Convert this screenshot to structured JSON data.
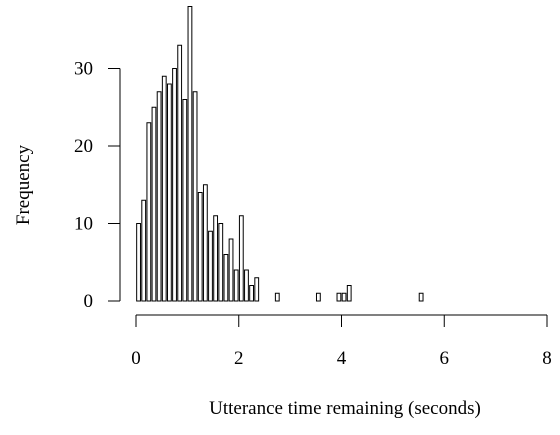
{
  "chart_data": {
    "type": "bar",
    "subtype": "histogram",
    "title": "",
    "xlabel": "Utterance time remaining (seconds)",
    "ylabel": "Frequency",
    "xlim": [
      0,
      8
    ],
    "ylim": [
      0,
      38
    ],
    "x_ticks": [
      0,
      2,
      4,
      6,
      8
    ],
    "y_ticks": [
      0,
      10,
      20,
      30
    ],
    "grid": false,
    "legend": "none",
    "bin_width": 0.1,
    "bins_start": [
      0,
      0.1,
      0.2,
      0.3,
      0.4,
      0.5,
      0.6,
      0.7,
      0.8,
      0.9,
      1.0,
      1.1,
      1.2,
      1.3,
      1.4,
      1.5,
      1.6,
      1.7,
      1.8,
      1.9,
      2.0,
      2.1,
      2.2,
      2.3,
      2.4,
      2.5,
      2.6,
      2.7,
      2.8,
      2.9,
      3.0,
      3.1,
      3.2,
      3.3,
      3.4,
      3.5,
      3.6,
      3.7,
      3.8,
      3.9,
      4.0,
      4.1,
      4.2,
      4.3,
      4.4,
      4.5,
      4.6,
      4.7,
      4.8,
      4.9,
      5.0,
      5.1,
      5.2,
      5.3,
      5.4,
      5.5,
      5.6,
      5.7,
      5.8,
      5.9,
      6.0,
      6.1,
      6.2,
      6.3,
      6.4,
      6.5,
      6.6,
      6.7,
      6.8,
      6.9,
      7.0,
      7.1,
      7.2,
      7.3,
      7.4,
      7.5,
      7.6,
      7.7,
      7.8,
      7.9
    ],
    "values": [
      10,
      13,
      23,
      25,
      27,
      29,
      28,
      30,
      33,
      26,
      38,
      27,
      14,
      15,
      9,
      11,
      10,
      6,
      8,
      4,
      11,
      4,
      2,
      3,
      0,
      0,
      0,
      1,
      0,
      0,
      0,
      0,
      0,
      0,
      0,
      1,
      0,
      0,
      0,
      1,
      1,
      2,
      0,
      0,
      0,
      0,
      0,
      0,
      0,
      0,
      0,
      0,
      0,
      0,
      0,
      1,
      0,
      0,
      0,
      0,
      0,
      0,
      0,
      0,
      0,
      0,
      0,
      0,
      0,
      0,
      0,
      0,
      0,
      0,
      0,
      0,
      0,
      0,
      0,
      0
    ],
    "colors": {
      "bar_fill": "#ffffff",
      "bar_stroke": "#000000"
    }
  }
}
